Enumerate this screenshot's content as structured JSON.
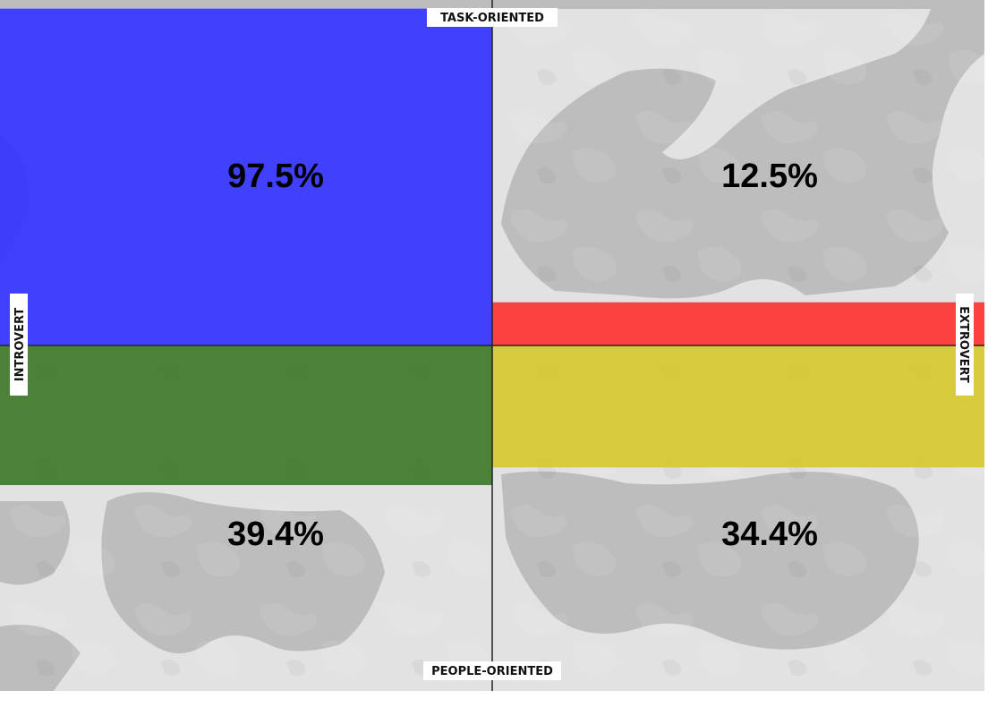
{
  "chart_data": {
    "type": "quadrant",
    "axes": {
      "top": "TASK-ORIENTED",
      "bottom": "PEOPLE-ORIENTED",
      "left": "INTROVERT",
      "right": "EXTROVERT"
    },
    "quadrants": [
      {
        "position": "top-left",
        "value": 97.5,
        "label": "97.5%",
        "color": "#3333ff"
      },
      {
        "position": "top-right",
        "value": 12.5,
        "label": "12.5%",
        "color": "#ff3333"
      },
      {
        "position": "bottom-left",
        "value": 39.4,
        "label": "39.4%",
        "color": "#3f7a29"
      },
      {
        "position": "bottom-right",
        "value": 34.4,
        "label": "34.4%",
        "color": "#d6c82f"
      }
    ],
    "background": {
      "land": "#bdbdbd",
      "water": "#e2e2e2"
    }
  }
}
